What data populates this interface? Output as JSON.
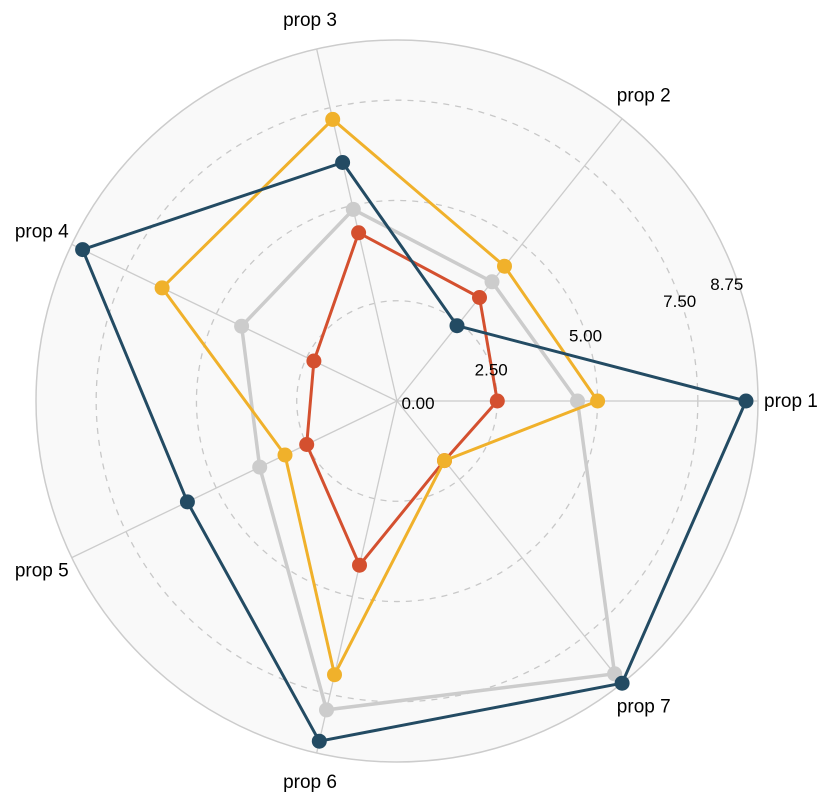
{
  "chart_data": {
    "type": "radar",
    "axes": [
      "prop 1",
      "prop 2",
      "prop 3",
      "prop 4",
      "prop 5",
      "prop 6",
      "prop 7"
    ],
    "radial_ticks": [
      "0.00",
      "2.50",
      "5.00",
      "7.50",
      "8.75"
    ],
    "radial_tick_values": [
      0,
      2.5,
      5,
      7.5,
      8.75
    ],
    "rmax": 9.0,
    "grid": true,
    "background_color": "#f9f9f9",
    "outer_ring_color": "#cccccc",
    "series": [
      {
        "color": "#cccccc",
        "values": [
          4.5,
          3.8,
          4.9,
          4.3,
          3.8,
          7.9,
          8.7
        ]
      },
      {
        "color": "#d4502f",
        "values": [
          2.5,
          3.3,
          4.3,
          2.3,
          2.5,
          4.2,
          1.9
        ]
      },
      {
        "color": "#f0b12b",
        "values": [
          5.0,
          4.3,
          7.2,
          6.5,
          3.1,
          7.0,
          1.9
        ]
      },
      {
        "color": "#234b63",
        "values": [
          8.7,
          2.4,
          6.1,
          8.7,
          5.8,
          8.7,
          9.0
        ]
      }
    ]
  }
}
